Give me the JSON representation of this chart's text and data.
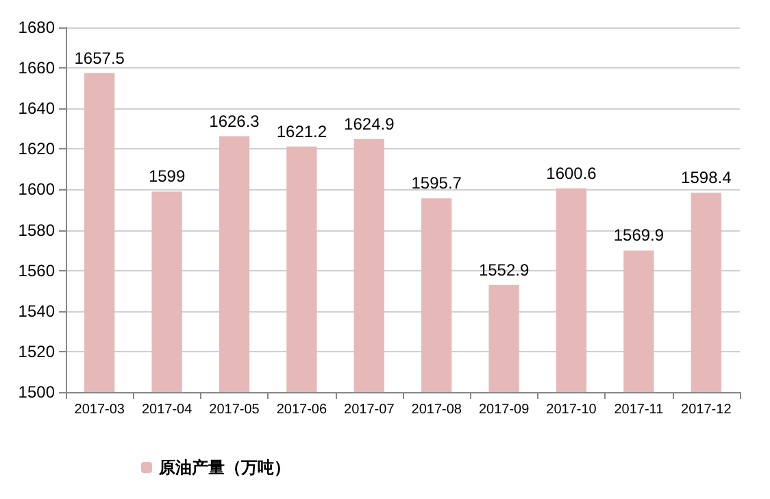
{
  "chart_data": {
    "type": "bar",
    "categories": [
      "2017-03",
      "2017-04",
      "2017-05",
      "2017-06",
      "2017-07",
      "2017-08",
      "2017-09",
      "2017-10",
      "2017-11",
      "2017-12"
    ],
    "series": [
      {
        "name": "原油产量（万吨）",
        "color": "#e6b8b7",
        "values": [
          1657.5,
          1599,
          1626.3,
          1621.2,
          1624.9,
          1595.7,
          1552.9,
          1600.6,
          1569.9,
          1598.4
        ]
      }
    ],
    "ylim": [
      1500,
      1680
    ],
    "yticks": [
      1500,
      1520,
      1540,
      1560,
      1580,
      1600,
      1620,
      1640,
      1660,
      1680
    ],
    "grid": "y",
    "legend": "bottom left",
    "data_labels": true
  }
}
